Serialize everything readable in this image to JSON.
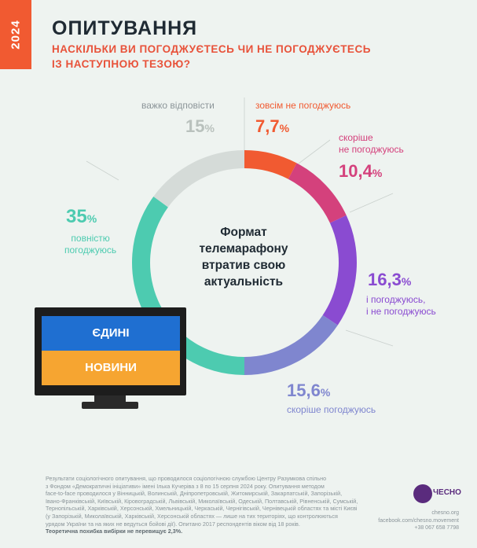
{
  "year": "2024",
  "title": "ОПИТУВАННЯ",
  "subtitle": "НАСКІЛЬКИ ВИ ПОГОДЖУЄТЕСЬ ЧИ НЕ ПОГОДЖУЄТЕСЬ\nІЗ НАСТУПНОЮ ТЕЗОЮ?",
  "center_text": "Формат\nтелемарафону\nвтратив свою\nактуальність",
  "tv": {
    "line1": "ЄДИНІ",
    "line2": "НОВИНИ"
  },
  "chart_data": {
    "type": "pie",
    "title": "НАСКІЛЬКИ ВИ ПОГОДЖУЄТЕСЬ ЧИ НЕ ПОГОДЖУЄТЕСЬ ІЗ НАСТУПНОЮ ТЕЗОЮ?",
    "center_label": "Формат телемарафону втратив свою актуальність",
    "slices": [
      {
        "label": "зовсім не погоджуюсь",
        "value": 7.7,
        "display": "7,7",
        "color": "#f15a31"
      },
      {
        "label": "скоріше\nне погоджуюсь",
        "value": 10.4,
        "display": "10,4",
        "color": "#d4417c"
      },
      {
        "label": "і погоджуюсь,\nі не погоджуюсь",
        "value": 16.3,
        "display": "16,3",
        "color": "#8a4bd1"
      },
      {
        "label": "скоріше погоджуюсь",
        "value": 15.6,
        "display": "15,6",
        "color": "#7f86cf"
      },
      {
        "label": "повністю\nпогоджуюсь",
        "value": 35,
        "display": "35",
        "color": "#4dcbb0"
      },
      {
        "label": "важко відповісти",
        "value": 15,
        "display": "15",
        "color": "#d5dbd8"
      }
    ],
    "unit": "%"
  },
  "footnote": {
    "text": "Результати соціологічного опитування, що проводилося соціологічною службою Центру Разумкова спільно\nз Фондом «Демократичні ініціативи» імені Ілька Кучеріва з 8 по 15 серпня 2024 року. Опитування методом\nface-to-face проводилося у Вінницькій, Волинській, Дніпропетровській, Житомирській, Закарпатській, Запорізькій,\nІвано-Франківській, Київській, Кіровоградській, Львівській, Миколаївській, Одеській, Полтавській, Рівненській, Сумській,\nТернопільській, Харківській, Херсонській, Хмельницькій, Черкаській, Чернігівській, Чернівецькій областях та місті Києві\n(у Запорізькій, Миколаївській, Харківській, Херсонській областях — лише на тих територіях, що контролюються\nурядом України та на яких не ведуться бойові дії). Опитано 2017 респондентів віком від 18 років.",
    "error": "Теоретична похибка вибірки не перевищує 2,3%."
  },
  "brand": {
    "logo_text": "ЧЕСНО",
    "contacts": "chesno.org\nfacebook.com/chesno.movement\n+38 067 658 7798"
  },
  "colors": {
    "accent": "#f15a31",
    "background": "#eef3f0"
  }
}
